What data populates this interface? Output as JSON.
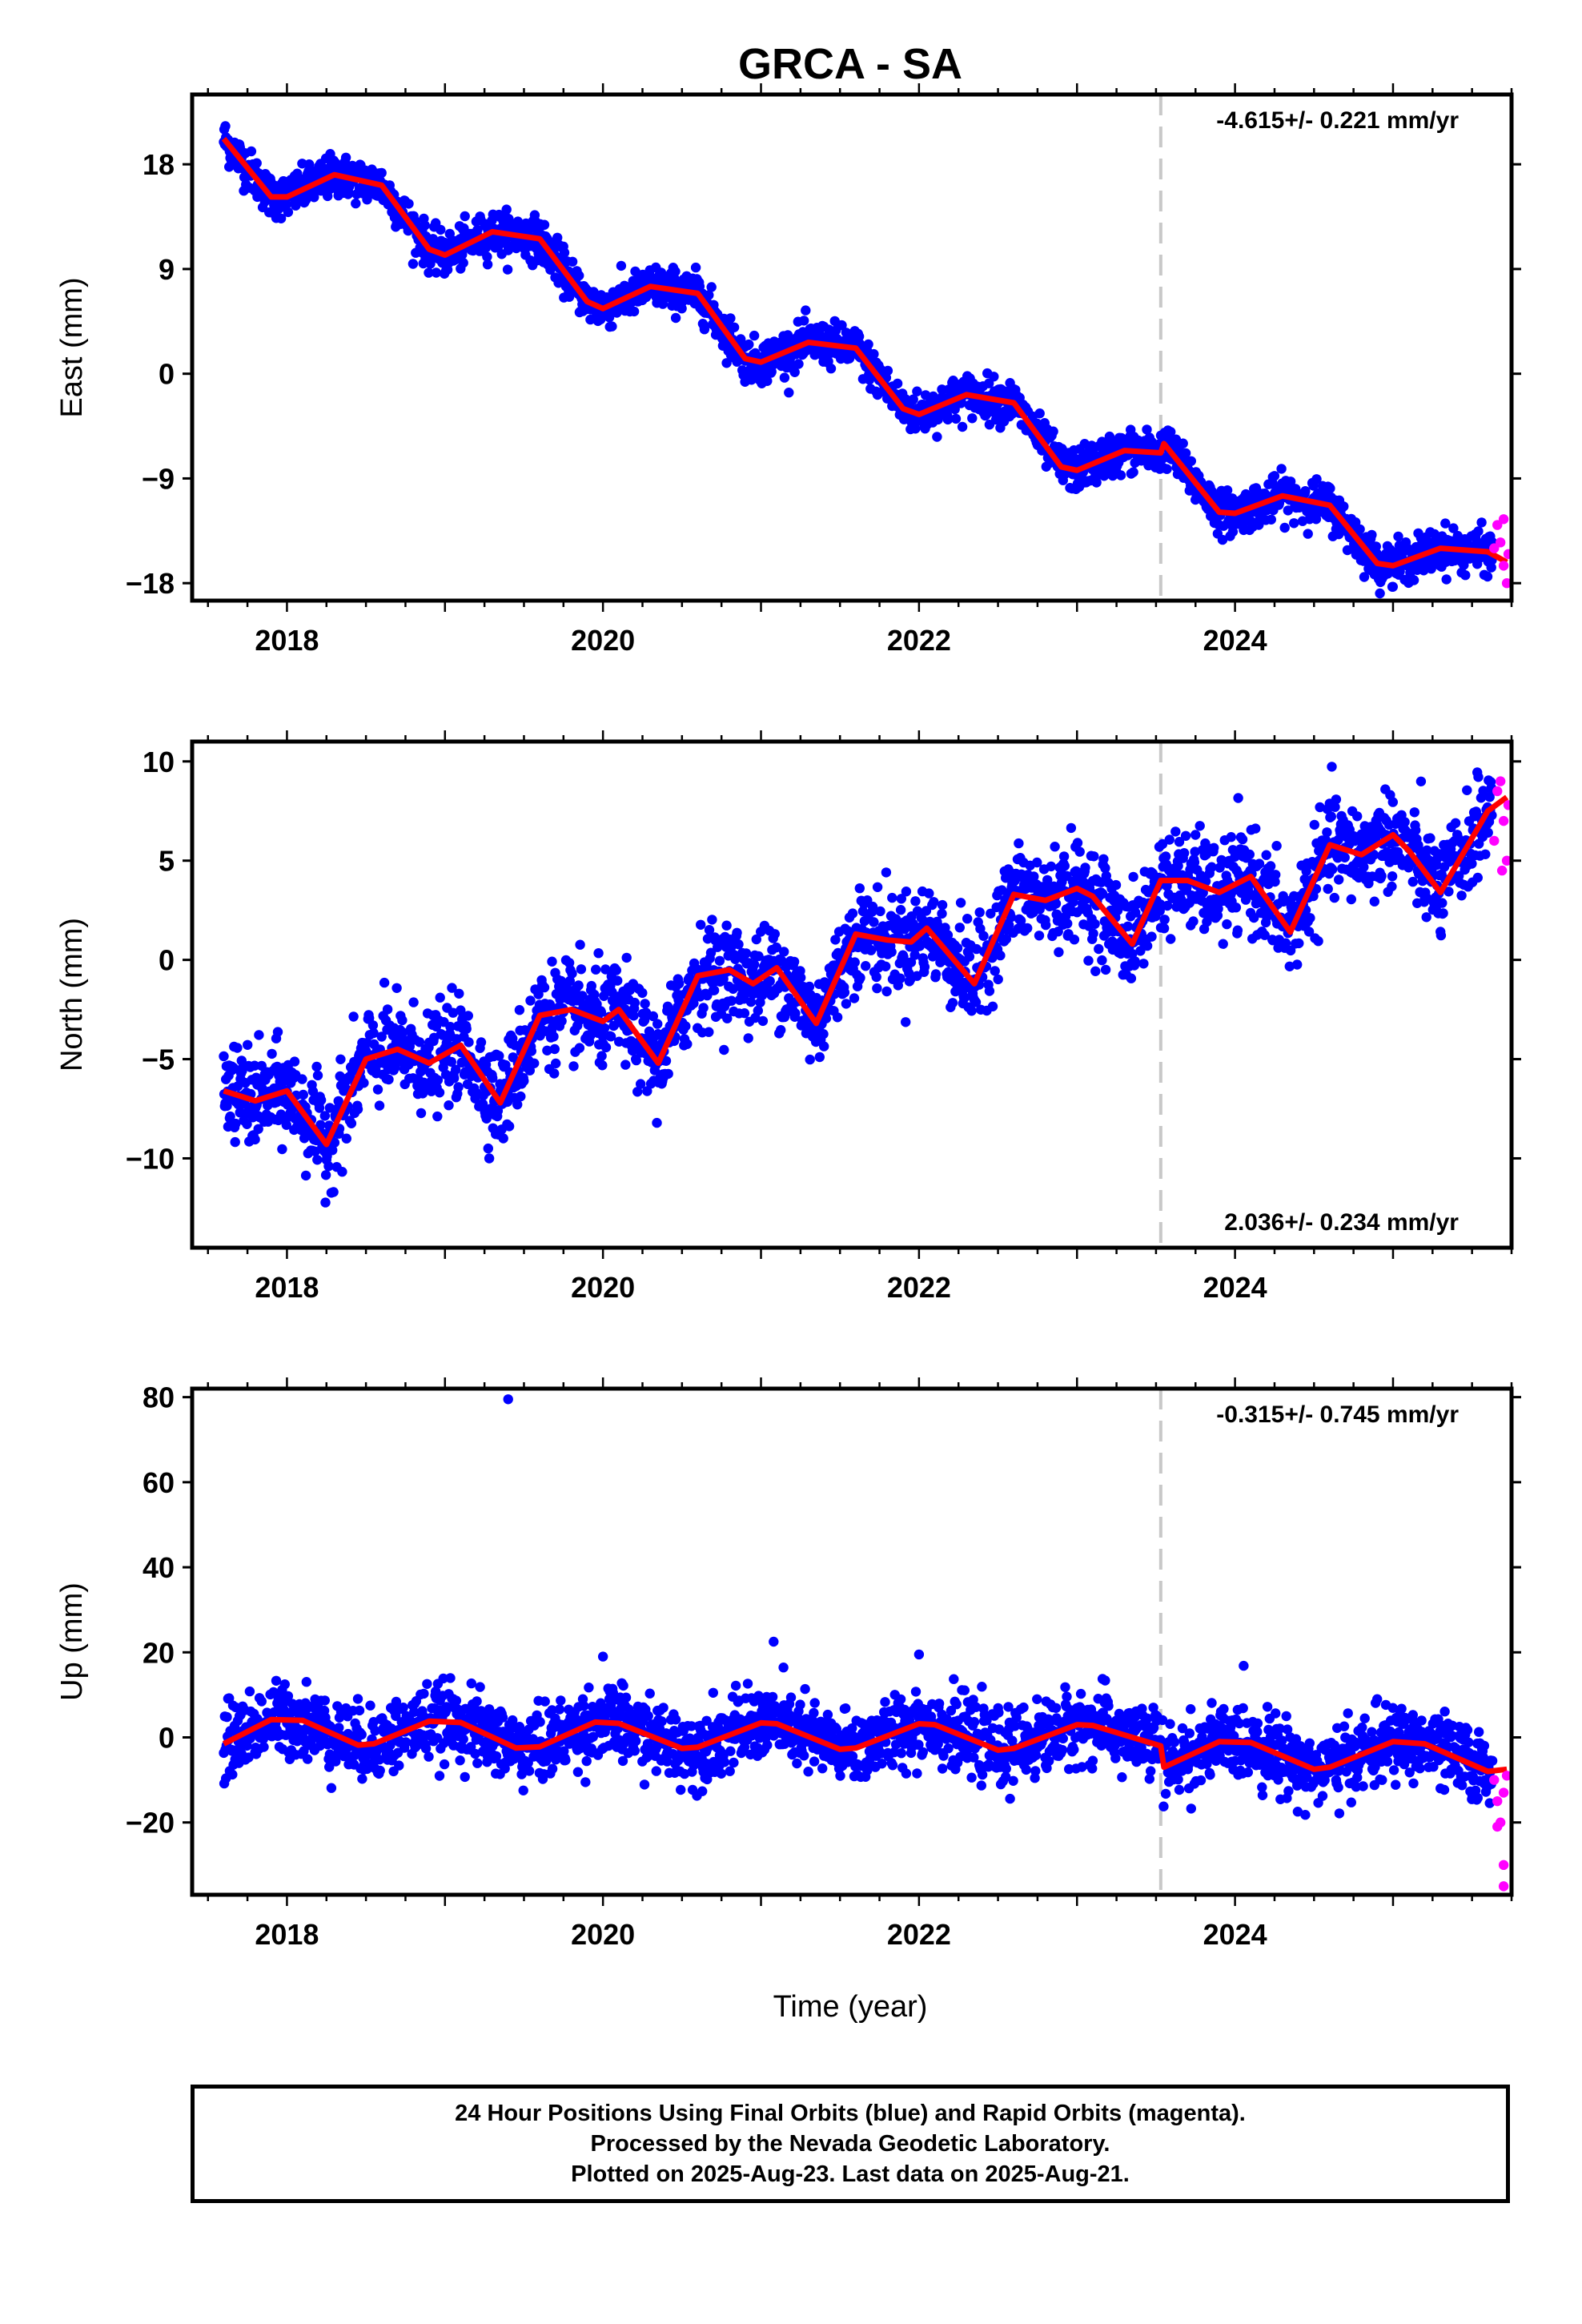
{
  "title": "GRCA - SA",
  "xlabel": "Time (year)",
  "colors": {
    "final": "#0000ff",
    "rapid": "#ff00ff",
    "model": "#ff0000",
    "break": "#c8c8c8"
  },
  "footer": {
    "line1": "24 Hour Positions Using Final Orbits (blue) and Rapid Orbits (magenta).",
    "line2": "Processed by the Nevada Geodetic Laboratory.",
    "line3": "Plotted on 2025-Aug-23. Last data on 2025-Aug-21."
  },
  "chart_data": [
    {
      "type": "scatter",
      "ylabel": "East (mm)",
      "rate": "-4.615+/- 0.221 mm/yr",
      "rate_position": "top-right",
      "xlim": [
        2017.4,
        2025.75
      ],
      "ylim": [
        -19.5,
        24
      ],
      "yticks": [
        18,
        9,
        0,
        -9,
        -18
      ],
      "xticks": [
        2018,
        2020,
        2022,
        2024
      ],
      "break_x": 2023.53,
      "trend": {
        "slope": -4.615,
        "intercept": 20.7,
        "t0": 2017.6,
        "annual_amp": 2.2,
        "annual_phase": 2.1,
        "semi_amp": 0.6,
        "noise": 0.9,
        "offset_after_break": 0
      },
      "model": [
        [
          2017.6,
          20.2
        ],
        [
          2017.9,
          15.2
        ],
        [
          2018.0,
          15.2
        ],
        [
          2018.3,
          17.1
        ],
        [
          2018.6,
          16.2
        ],
        [
          2018.9,
          10.7
        ],
        [
          2019.0,
          10.2
        ],
        [
          2019.3,
          12.2
        ],
        [
          2019.6,
          11.6
        ],
        [
          2019.9,
          6.2
        ],
        [
          2020.0,
          5.6
        ],
        [
          2020.3,
          7.5
        ],
        [
          2020.6,
          6.9
        ],
        [
          2020.9,
          1.3
        ],
        [
          2021.0,
          1.0
        ],
        [
          2021.3,
          2.7
        ],
        [
          2021.6,
          2.2
        ],
        [
          2021.9,
          -3.0
        ],
        [
          2022.0,
          -3.5
        ],
        [
          2022.3,
          -1.8
        ],
        [
          2022.6,
          -2.5
        ],
        [
          2022.9,
          -8.0
        ],
        [
          2023.0,
          -8.3
        ],
        [
          2023.3,
          -6.6
        ],
        [
          2023.53,
          -6.8
        ],
        [
          2023.55,
          -6.0
        ],
        [
          2023.9,
          -11.9
        ],
        [
          2024.0,
          -12.0
        ],
        [
          2024.3,
          -10.5
        ],
        [
          2024.6,
          -11.3
        ],
        [
          2024.9,
          -16.3
        ],
        [
          2025.0,
          -16.5
        ],
        [
          2025.3,
          -15.0
        ],
        [
          2025.6,
          -15.3
        ],
        [
          2025.72,
          -16.2
        ]
      ],
      "rapid": [
        [
          2025.64,
          -15.0
        ],
        [
          2025.66,
          -13.0
        ],
        [
          2025.68,
          -14.5
        ],
        [
          2025.7,
          -16.5
        ],
        [
          2025.72,
          -18.0
        ],
        [
          2025.73,
          -15.5
        ],
        [
          2025.7,
          -12.5
        ]
      ]
    },
    {
      "type": "scatter",
      "ylabel": "North (mm)",
      "rate": "2.036+/- 0.234 mm/yr",
      "rate_position": "bottom-right",
      "xlim": [
        2017.4,
        2025.75
      ],
      "ylim": [
        -14.5,
        11
      ],
      "yticks": [
        10,
        5,
        0,
        -5,
        -10
      ],
      "xticks": [
        2018,
        2020,
        2022,
        2024
      ],
      "break_x": 2023.53,
      "trend": {
        "slope": 2.036,
        "intercept": -7.2,
        "t0": 2017.6,
        "annual_amp": 1.8,
        "annual_phase": 0.6,
        "semi_amp": 0.8,
        "noise": 1.2,
        "offset_after_break": 1.5
      },
      "model": [
        [
          2017.6,
          -6.6
        ],
        [
          2017.8,
          -7.1
        ],
        [
          2018.0,
          -6.6
        ],
        [
          2018.25,
          -9.3
        ],
        [
          2018.5,
          -5.0
        ],
        [
          2018.7,
          -4.5
        ],
        [
          2018.9,
          -5.2
        ],
        [
          2019.1,
          -4.3
        ],
        [
          2019.35,
          -7.2
        ],
        [
          2019.6,
          -2.8
        ],
        [
          2019.8,
          -2.5
        ],
        [
          2020.0,
          -3.1
        ],
        [
          2020.1,
          -2.5
        ],
        [
          2020.35,
          -5.2
        ],
        [
          2020.6,
          -0.8
        ],
        [
          2020.8,
          -0.5
        ],
        [
          2020.95,
          -1.2
        ],
        [
          2021.1,
          -0.4
        ],
        [
          2021.35,
          -3.2
        ],
        [
          2021.6,
          1.3
        ],
        [
          2021.8,
          1.0
        ],
        [
          2021.95,
          0.9
        ],
        [
          2022.05,
          1.6
        ],
        [
          2022.35,
          -1.2
        ],
        [
          2022.6,
          3.3
        ],
        [
          2022.8,
          3.0
        ],
        [
          2023.0,
          3.6
        ],
        [
          2023.1,
          3.2
        ],
        [
          2023.35,
          0.8
        ],
        [
          2023.53,
          4.0
        ],
        [
          2023.7,
          4.0
        ],
        [
          2023.9,
          3.4
        ],
        [
          2024.1,
          4.2
        ],
        [
          2024.35,
          1.4
        ],
        [
          2024.6,
          5.8
        ],
        [
          2024.8,
          5.3
        ],
        [
          2025.0,
          6.3
        ],
        [
          2025.1,
          5.5
        ],
        [
          2025.3,
          3.4
        ],
        [
          2025.6,
          7.5
        ],
        [
          2025.72,
          8.2
        ]
      ],
      "rapid": [
        [
          2025.64,
          6.0
        ],
        [
          2025.66,
          8.5
        ],
        [
          2025.68,
          9.0
        ],
        [
          2025.7,
          7.0
        ],
        [
          2025.72,
          5.0
        ],
        [
          2025.73,
          7.8
        ],
        [
          2025.69,
          4.5
        ]
      ]
    },
    {
      "type": "scatter",
      "ylabel": "Up (mm)",
      "rate": "-0.315+/- 0.745 mm/yr",
      "rate_position": "top-right",
      "xlim": [
        2017.4,
        2025.75
      ],
      "ylim": [
        -37,
        82
      ],
      "yticks": [
        80,
        60,
        40,
        20,
        0,
        -20
      ],
      "xticks": [
        2018,
        2020,
        2022,
        2024
      ],
      "break_x": 2023.53,
      "trend": {
        "slope": -0.315,
        "intercept": 1.0,
        "t0": 2017.6,
        "annual_amp": 3.2,
        "annual_phase": 1.2,
        "semi_amp": 0.5,
        "noise": 4.2,
        "offset_after_break": -3.0
      },
      "model": [
        [
          2017.6,
          -1.5
        ],
        [
          2017.9,
          4.2
        ],
        [
          2018.1,
          4.0
        ],
        [
          2018.45,
          -1.8
        ],
        [
          2018.55,
          -1.5
        ],
        [
          2018.9,
          3.8
        ],
        [
          2019.1,
          3.5
        ],
        [
          2019.45,
          -2.5
        ],
        [
          2019.6,
          -2.2
        ],
        [
          2019.95,
          3.6
        ],
        [
          2020.1,
          3.3
        ],
        [
          2020.5,
          -2.6
        ],
        [
          2020.6,
          -2.3
        ],
        [
          2021.0,
          3.4
        ],
        [
          2021.1,
          3.2
        ],
        [
          2021.5,
          -2.8
        ],
        [
          2021.6,
          -2.5
        ],
        [
          2022.0,
          3.2
        ],
        [
          2022.1,
          3.0
        ],
        [
          2022.5,
          -3.0
        ],
        [
          2022.6,
          -2.6
        ],
        [
          2023.0,
          3.0
        ],
        [
          2023.1,
          2.8
        ],
        [
          2023.53,
          -2.0
        ],
        [
          2023.55,
          -7.0
        ],
        [
          2023.9,
          -1.0
        ],
        [
          2024.1,
          -1.2
        ],
        [
          2024.5,
          -7.5
        ],
        [
          2024.6,
          -7.0
        ],
        [
          2025.0,
          -1.0
        ],
        [
          2025.2,
          -1.5
        ],
        [
          2025.6,
          -8.0
        ],
        [
          2025.72,
          -7.5
        ]
      ],
      "outliers": [
        [
          2019.4,
          79.5
        ],
        [
          2021.08,
          22.5
        ],
        [
          2022.0,
          19.5
        ],
        [
          2020.0,
          19.0
        ]
      ],
      "rapid": [
        [
          2025.64,
          -10.0
        ],
        [
          2025.66,
          -15.0
        ],
        [
          2025.68,
          -20.0
        ],
        [
          2025.7,
          -13.0
        ],
        [
          2025.7,
          -30.0
        ],
        [
          2025.7,
          -35.0
        ],
        [
          2025.72,
          -9.0
        ],
        [
          2025.66,
          -21.0
        ]
      ]
    }
  ]
}
